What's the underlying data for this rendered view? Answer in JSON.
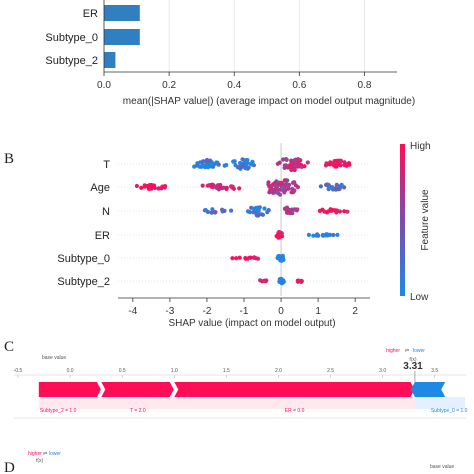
{
  "panels": {
    "b": "B",
    "c": "C",
    "d": "D"
  },
  "chart_data": [
    {
      "type": "bar",
      "orientation": "horizontal",
      "categories": [
        "ER",
        "Subtype_0",
        "Subtype_2"
      ],
      "values": [
        0.11,
        0.11,
        0.035
      ],
      "xlabel": "mean(|SHAP value|) (average impact on model output magnitude)",
      "xlim": [
        0.0,
        0.9
      ],
      "xticks": [
        "0.0",
        "0.2",
        "0.4",
        "0.6",
        "0.8"
      ],
      "grid": "vertical",
      "colors": {
        "bar": "#2f7fc1"
      }
    },
    {
      "type": "scatter",
      "subtype": "beeswarm",
      "categories": [
        "T",
        "Age",
        "N",
        "ER",
        "Subtype_0",
        "Subtype_2"
      ],
      "xlabel": "SHAP value (impact on model output)",
      "xlim": [
        -4.4,
        2.4
      ],
      "xticks": [
        "-4",
        "-3",
        "-2",
        "-1",
        "0",
        "1",
        "2"
      ],
      "colorbar": {
        "label": "Feature value",
        "high": "High",
        "low": "Low"
      },
      "colors": {
        "low": "#1e88e5",
        "high": "#ff0d57"
      },
      "grid": "none",
      "series": [
        {
          "feature": "T",
          "clusters": [
            {
              "x": -2.0,
              "spread": 0.6,
              "count": 34,
              "hue": 0.05,
              "width": 4
            },
            {
              "x": -1.0,
              "spread": 0.35,
              "count": 30,
              "hue": 0.1,
              "width": 6
            },
            {
              "x": 0.3,
              "spread": 0.5,
              "count": 40,
              "hue": 0.75,
              "width": 7
            },
            {
              "x": 1.5,
              "spread": 0.5,
              "count": 26,
              "hue": 0.95,
              "width": 4
            }
          ]
        },
        {
          "feature": "Age",
          "clusters": [
            {
              "x": -3.5,
              "spread": 0.7,
              "count": 22,
              "hue": 0.95,
              "width": 2
            },
            {
              "x": -1.6,
              "spread": 0.6,
              "count": 26,
              "hue": 0.8,
              "width": 3
            },
            {
              "x": 0.0,
              "spread": 0.6,
              "count": 60,
              "hue": 0.6,
              "width": 8
            },
            {
              "x": 1.4,
              "spread": 0.5,
              "count": 24,
              "hue": 0.2,
              "width": 3
            }
          ]
        },
        {
          "feature": "N",
          "clusters": [
            {
              "x": -1.8,
              "spread": 0.6,
              "count": 14,
              "hue": 0.2,
              "width": 2
            },
            {
              "x": -0.6,
              "spread": 0.35,
              "count": 26,
              "hue": 0.1,
              "width": 5
            },
            {
              "x": 0.2,
              "spread": 0.35,
              "count": 24,
              "hue": 0.55,
              "width": 4
            },
            {
              "x": 1.3,
              "spread": 0.6,
              "count": 16,
              "hue": 0.95,
              "width": 2
            }
          ]
        },
        {
          "feature": "ER",
          "clusters": [
            {
              "x": -0.05,
              "spread": 0.12,
              "count": 20,
              "hue": 1.0,
              "width": 3
            },
            {
              "x": 1.1,
              "spread": 0.7,
              "count": 18,
              "hue": 0.0,
              "width": 1
            }
          ]
        },
        {
          "feature": "Subtype_0",
          "clusters": [
            {
              "x": 0.0,
              "spread": 0.15,
              "count": 20,
              "hue": 0.0,
              "width": 3
            },
            {
              "x": -0.8,
              "spread": 0.6,
              "count": 12,
              "hue": 1.0,
              "width": 1
            }
          ]
        },
        {
          "feature": "Subtype_2",
          "clusters": [
            {
              "x": 0.0,
              "spread": 0.12,
              "count": 16,
              "hue": 0.0,
              "width": 3
            },
            {
              "x": -0.5,
              "spread": 0.3,
              "count": 6,
              "hue": 1.0,
              "width": 1
            },
            {
              "x": 0.5,
              "spread": 0.3,
              "count": 6,
              "hue": 1.0,
              "width": 1
            }
          ]
        }
      ]
    },
    {
      "type": "bar",
      "subtype": "force",
      "xlim": [
        -0.5,
        3.8
      ],
      "xticks": [
        "-0.5",
        "0.0",
        "0.5",
        "1.0",
        "1.5",
        "2.0",
        "2.5",
        "3.0",
        "3.5"
      ],
      "base_value_label": "base value",
      "higher_label": "higher",
      "lower_label": "lower",
      "arrows_label": "⇄",
      "fx_label": "f(x)",
      "fx_value": "3.31",
      "fx": 3.31,
      "colors": {
        "higher": "#ff0d57",
        "lower": "#1e88e5"
      },
      "positive": [
        {
          "label": "Subtype_2 = 1.0",
          "from": -0.3,
          "to": 0.3
        },
        {
          "label": "T = 2.0",
          "from": 0.3,
          "to": 1.0
        },
        {
          "label": "ER = 0.0",
          "from": 1.0,
          "to": 3.31
        }
      ],
      "negative": [
        {
          "label": "Subtype_0 = 1.0",
          "from": 3.31,
          "to": 3.6
        }
      ]
    },
    {
      "type": "bar",
      "subtype": "force",
      "higher_label": "higher",
      "lower_label": "lower",
      "arrows_label": "⇄",
      "fx_label": "f(x)",
      "base_value_label": "base value",
      "colors": {
        "higher": "#ff0d57",
        "lower": "#1e88e5"
      }
    }
  ]
}
